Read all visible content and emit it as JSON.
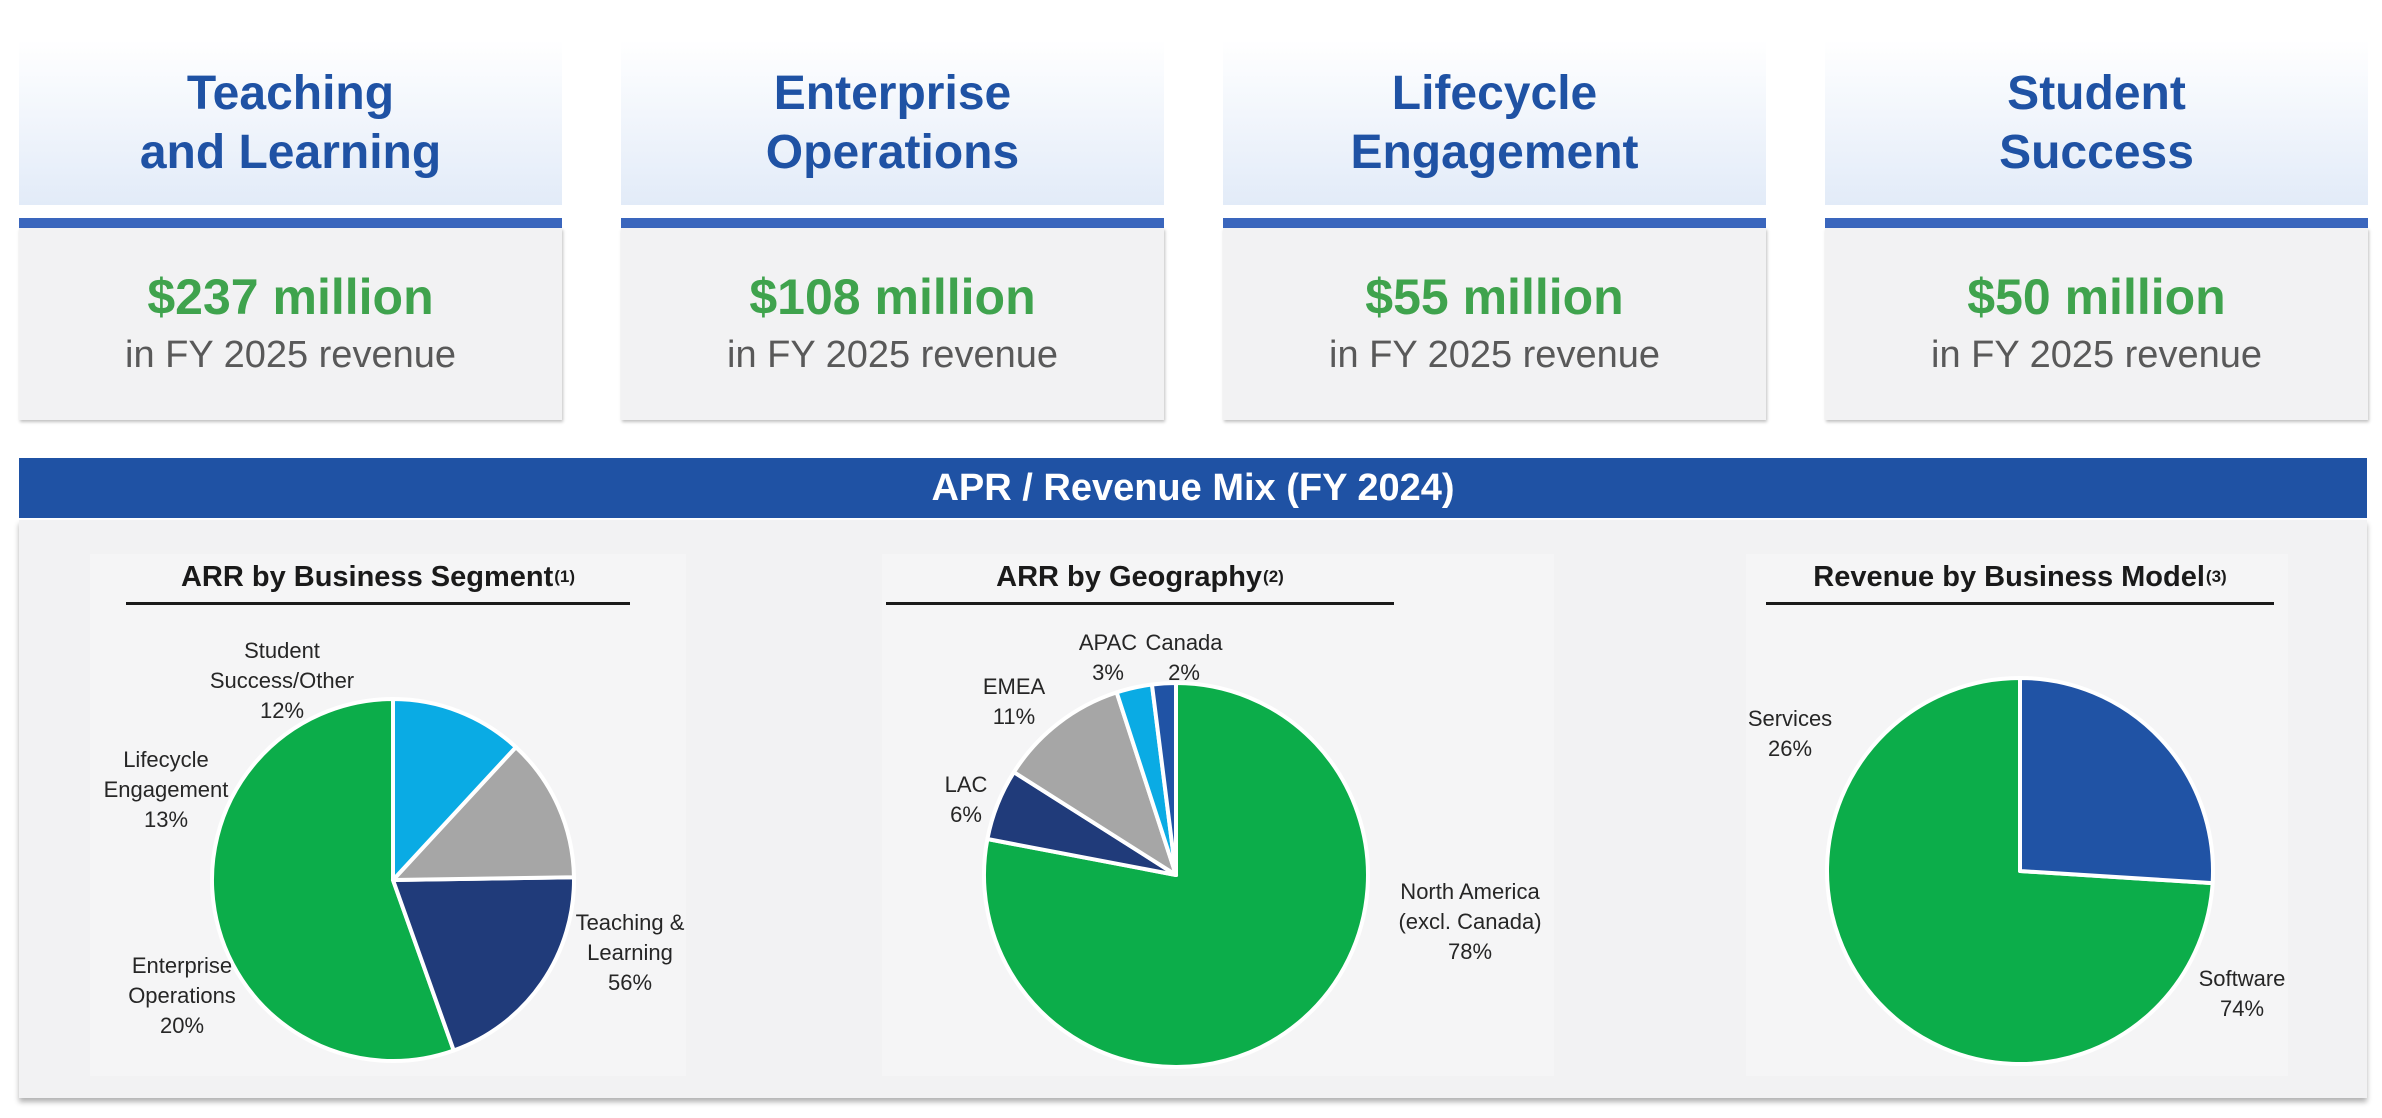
{
  "segments": [
    {
      "title_line1": "Teaching",
      "title_line2": "and Learning",
      "amount": "$237 million",
      "subtitle": "in FY 2025 revenue"
    },
    {
      "title_line1": "Enterprise",
      "title_line2": "Operations",
      "amount": "$108 million",
      "subtitle": "in FY 2025 revenue"
    },
    {
      "title_line1": "Lifecycle",
      "title_line2": "Engagement",
      "amount": "$55 million",
      "subtitle": "in FY 2025 revenue"
    },
    {
      "title_line1": "Student",
      "title_line2": "Success",
      "amount": "$50 million",
      "subtitle": "in FY 2025 revenue"
    }
  ],
  "banner": {
    "title": "APR / Revenue Mix (FY 2024)"
  },
  "colors": {
    "title_blue": "#1f52a4",
    "amount_green": "#3fa34d",
    "banner_blue": "#1f52a4",
    "pie_green": "#0cad4a",
    "pie_navy": "#203b7a",
    "pie_gray": "#a6a6a6",
    "pie_cyan": "#0aabe4",
    "pie_blue": "#2053a5"
  },
  "chart_data": [
    {
      "type": "pie",
      "title": "ARR by Business Segment",
      "title_note": "(1)",
      "slices": [
        {
          "label_lines": [
            "Teaching &",
            "Learning"
          ],
          "value": 56,
          "value_label": "56%",
          "color": "#0cad4a"
        },
        {
          "label_lines": [
            "Enterprise",
            "Operations"
          ],
          "value": 20,
          "value_label": "20%",
          "color": "#203b7a"
        },
        {
          "label_lines": [
            "Lifecycle",
            "Engagement"
          ],
          "value": 13,
          "value_label": "13%",
          "color": "#a6a6a6"
        },
        {
          "label_lines": [
            "Student",
            "Success/Other"
          ],
          "value": 12,
          "value_label": "12%",
          "color": "#0aabe4"
        }
      ]
    },
    {
      "type": "pie",
      "title": "ARR by Geography",
      "title_note": "(2)",
      "slices": [
        {
          "label_lines": [
            "North America",
            "(excl. Canada)"
          ],
          "value": 78,
          "value_label": "78%",
          "color": "#0cad4a"
        },
        {
          "label_lines": [
            "LAC"
          ],
          "value": 6,
          "value_label": "6%",
          "color": "#203b7a"
        },
        {
          "label_lines": [
            "EMEA"
          ],
          "value": 11,
          "value_label": "11%",
          "color": "#a6a6a6"
        },
        {
          "label_lines": [
            "APAC"
          ],
          "value": 3,
          "value_label": "3%",
          "color": "#0aabe4"
        },
        {
          "label_lines": [
            "Canada"
          ],
          "value": 2,
          "value_label": "2%",
          "color": "#2053a5"
        }
      ]
    },
    {
      "type": "pie",
      "title": "Revenue by Business Model",
      "title_note": "(3)",
      "slices": [
        {
          "label_lines": [
            "Software"
          ],
          "value": 74,
          "value_label": "74%",
          "color": "#0cad4a"
        },
        {
          "label_lines": [
            "Services"
          ],
          "value": 26,
          "value_label": "26%",
          "color": "#2053a5"
        }
      ]
    }
  ]
}
